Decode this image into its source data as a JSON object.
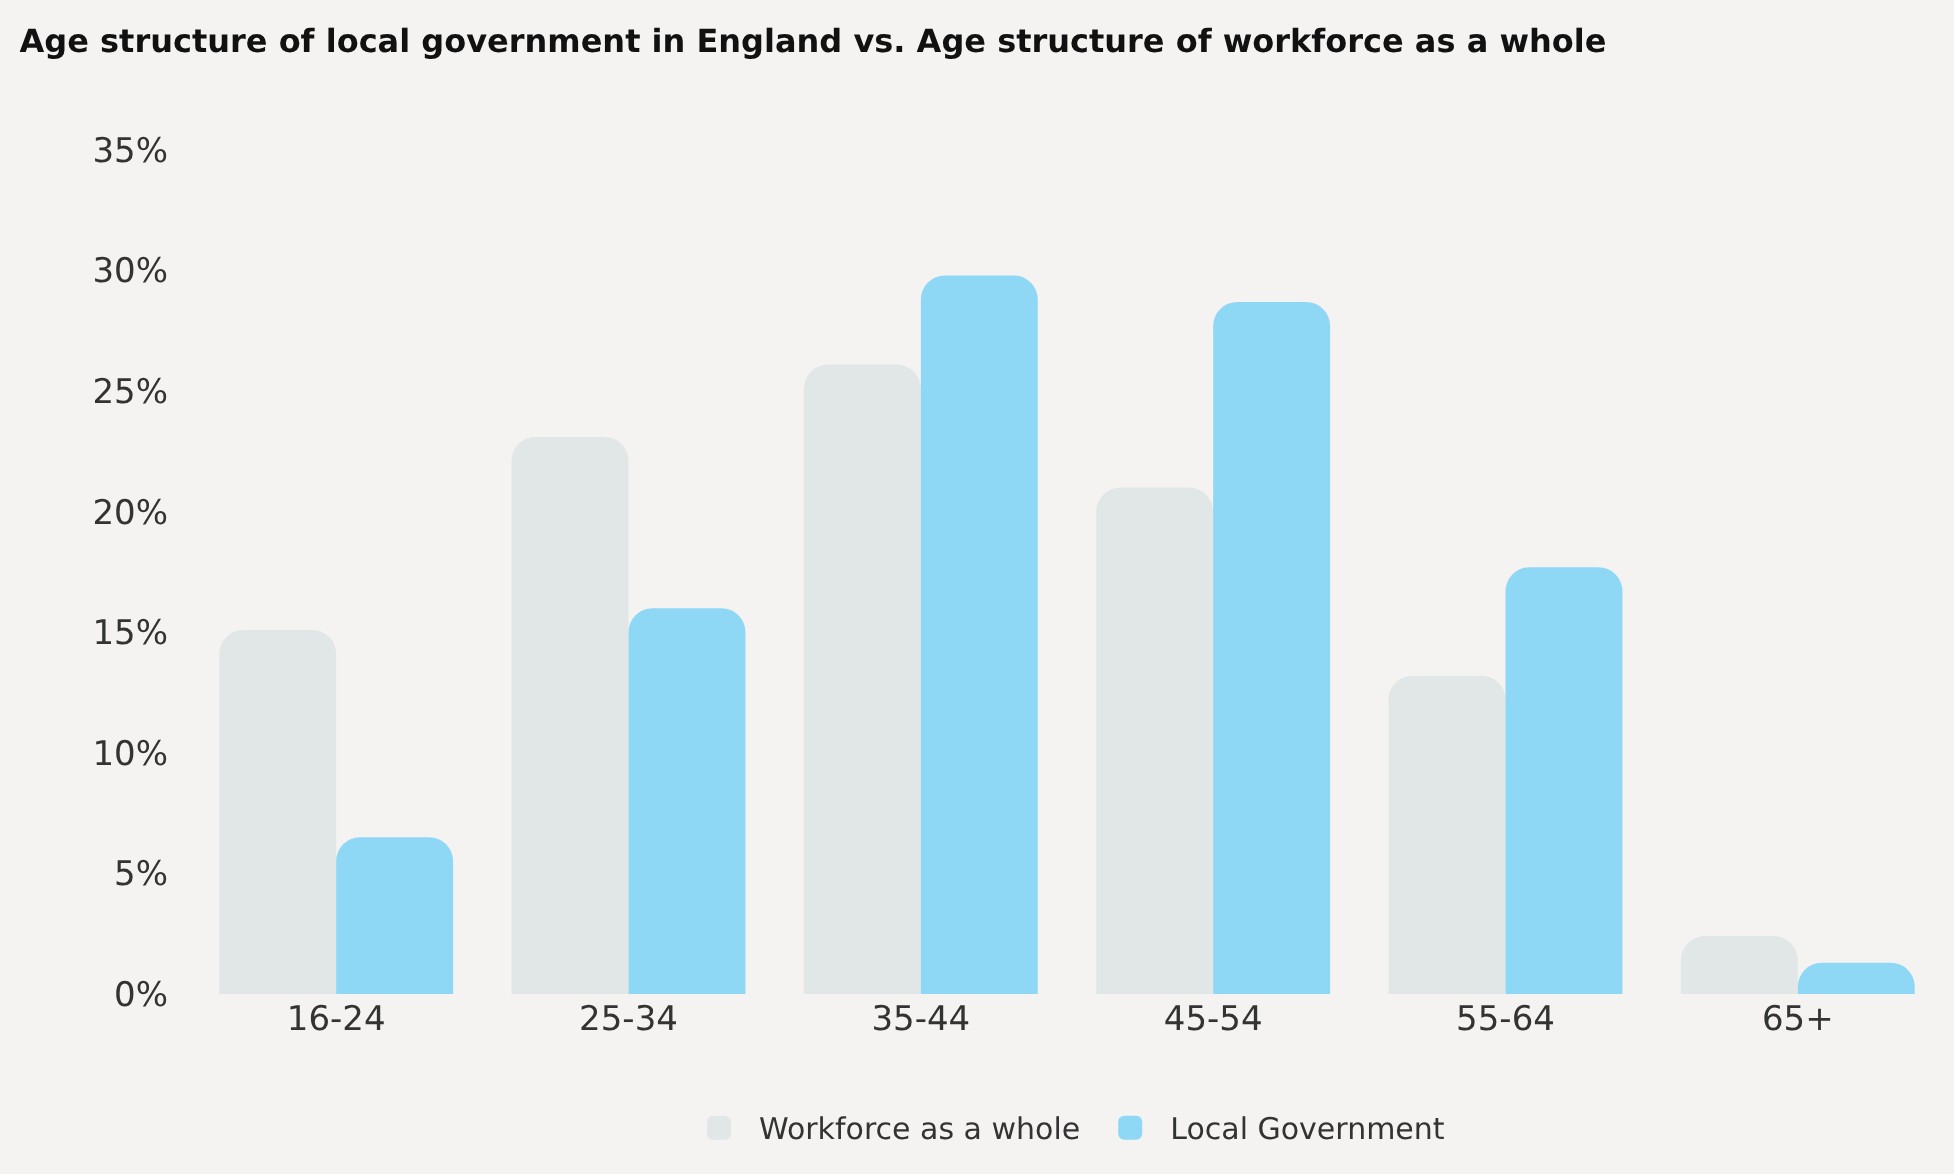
{
  "chart_data": {
    "type": "bar",
    "title": "Age structure of local government in England vs. Age structure of workforce as a whole",
    "categories": [
      "16-24",
      "25-34",
      "35-44",
      "45-54",
      "55-64",
      "65+"
    ],
    "series": [
      {
        "name": "Workforce as a whole",
        "color": "#e1e6e6",
        "values": [
          15.1,
          23.1,
          26.1,
          21.0,
          13.2,
          2.4
        ]
      },
      {
        "name": "Local Government",
        "color": "#8fd8f5",
        "values": [
          6.5,
          16.0,
          29.8,
          28.7,
          17.7,
          1.3
        ]
      }
    ],
    "ylim": [
      0,
      35
    ],
    "yticks": [
      {
        "value": 0,
        "label": "0%"
      },
      {
        "value": 5,
        "label": "5%"
      },
      {
        "value": 10,
        "label": "10%"
      },
      {
        "value": 15,
        "label": "15%"
      },
      {
        "value": 20,
        "label": "20%"
      },
      {
        "value": 25,
        "label": "25%"
      },
      {
        "value": 30,
        "label": "30%"
      },
      {
        "value": 35,
        "label": "35%"
      }
    ],
    "grid": false,
    "legend": "bottom"
  }
}
